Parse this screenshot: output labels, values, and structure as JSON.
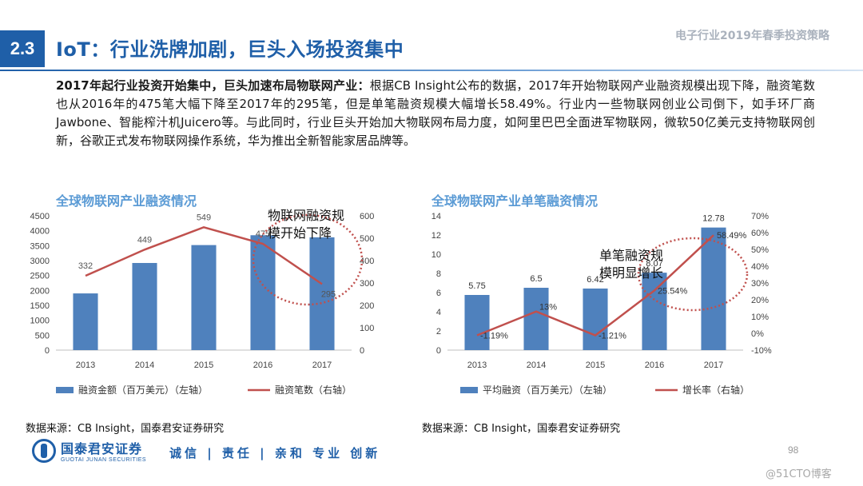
{
  "header": {
    "section_number": "2.3",
    "title": "IoT：行业洗牌加剧，巨头入场投资集中",
    "report_title": "电子行业2019年春季投资策略"
  },
  "body": {
    "lead": "2017年起行业投资开始集中，巨头加速布局物联网产业：",
    "text": "根据CB Insight公布的数据，2017年开始物联网产业融资规模出现下降，融资笔数也从2016年的475笔大幅下降至2017年的295笔，但是单笔融资规模大幅增长58.49%。行业内一些物联网创业公司倒下，如手环厂商Jawbone、智能榨汁机Juicero等。与此同时，行业巨头开始加大物联网布局力度，如阿里巴巴全面进军物联网，微软50亿美元支持物联网创新，谷歌正式发布物联网操作系统，华为推出全新智能家居品牌等。"
  },
  "chart_data": [
    {
      "type": "bar",
      "title": "全球物联网产业融资情况",
      "categories": [
        "2013",
        "2014",
        "2015",
        "2016",
        "2017"
      ],
      "series": [
        {
          "name": "融资金额（百万美元）（左轴）",
          "type": "bar",
          "axis": "left",
          "values": [
            1900,
            2920,
            3520,
            3850,
            3780
          ],
          "color": "#4f81bd"
        },
        {
          "name": "融资笔数（右轴）",
          "type": "line",
          "axis": "right",
          "values": [
            332,
            449,
            549,
            475,
            295
          ],
          "color": "#c0504d"
        }
      ],
      "left_axis": {
        "range": [
          0,
          4500
        ],
        "ticks": [
          "0",
          "500",
          "1000",
          "1500",
          "2000",
          "2500",
          "3000",
          "3500",
          "4000",
          "4500"
        ]
      },
      "right_axis": {
        "range": [
          0,
          600
        ],
        "ticks": [
          "0",
          "100",
          "200",
          "300",
          "400",
          "500",
          "600"
        ]
      },
      "annotation": "物联网融资规模开始下降",
      "legend_position": "bottom"
    },
    {
      "type": "bar",
      "title": "全球物联网产业单笔融资情况",
      "categories": [
        "2013",
        "2014",
        "2015",
        "2016",
        "2017"
      ],
      "series": [
        {
          "name": "平均融资（百万美元）（左轴）",
          "type": "bar",
          "axis": "left",
          "values": [
            5.75,
            6.5,
            6.42,
            8.07,
            12.78
          ],
          "color": "#4f81bd"
        },
        {
          "name": "增长率（右轴）",
          "type": "line",
          "axis": "right",
          "values": [
            -1.19,
            13,
            -1.21,
            25.54,
            58.49
          ],
          "color": "#c0504d"
        }
      ],
      "bar_labels": [
        "5.75",
        "6.5",
        "6.42",
        "8.07",
        "12.78"
      ],
      "line_labels": [
        "-1.19%",
        "13%",
        "-1.21%",
        "25.54%",
        "58.49%"
      ],
      "left_axis": {
        "range": [
          0,
          14
        ],
        "ticks": [
          "0",
          "2",
          "4",
          "6",
          "8",
          "10",
          "12",
          "14"
        ]
      },
      "right_axis": {
        "range": [
          -10,
          70
        ],
        "ticks": [
          "-10%",
          "0%",
          "10%",
          "20%",
          "30%",
          "40%",
          "50%",
          "60%",
          "70%"
        ]
      },
      "annotation": "单笔融资规模明显增长",
      "legend_position": "bottom"
    }
  ],
  "sources": {
    "left": "数据来源：CB Insight，国泰君安证券研究",
    "right": "数据来源：CB Insight，国泰君安证券研究"
  },
  "footer": {
    "company_cn": "国泰君安证券",
    "company_en": "GUOTAI JUNAN SECURITIES",
    "slogan": "诚信 | 责任 | 亲和 专业 创新",
    "page_number": "98",
    "watermark": "@51CTO博客"
  },
  "colors": {
    "brand": "#1f5fa8",
    "chart_title": "#5b9bd5",
    "bar": "#4f81bd",
    "line": "#c0504d"
  }
}
